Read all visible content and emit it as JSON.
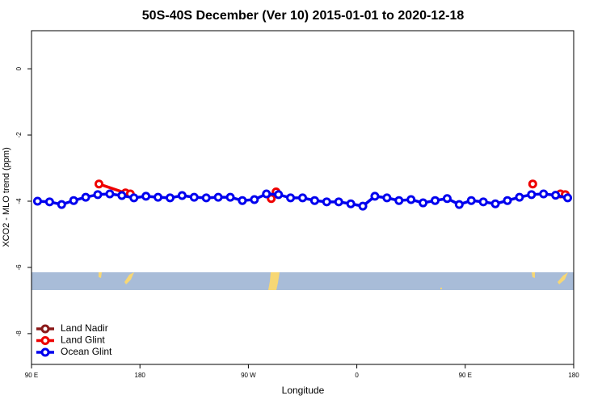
{
  "chart_data": {
    "type": "line",
    "title": "50S-40S December (Ver 10)   2015-01-01 to 2020-12-18",
    "x_label": "Longitude",
    "y_label": "XCO2 - MLO trend (ppm)",
    "xlim": [
      90,
      540
    ],
    "xticks": [
      {
        "value": 90,
        "label": "90 E"
      },
      {
        "value": 180,
        "label": "180"
      },
      {
        "value": 270,
        "label": "90 W"
      },
      {
        "value": 360,
        "label": "0"
      },
      {
        "value": 450,
        "label": "90 E"
      },
      {
        "value": 540,
        "label": "180"
      }
    ],
    "ylim": [
      -8.93,
      1.15
    ],
    "yticks": [
      0,
      -2,
      -4,
      -6,
      -8
    ],
    "legend": "bottom-left",
    "series": [
      {
        "name": "Land Nadir",
        "color": "#8b1a1a",
        "x": [],
        "values": []
      },
      {
        "name": "Land Glint",
        "color": "#ee0000",
        "x": [
          146,
          168,
          172,
          null,
          289,
          293,
          null,
          506,
          null,
          529,
          533
        ],
        "values": [
          -3.48,
          -3.75,
          -3.78,
          null,
          -3.92,
          -3.72,
          null,
          -3.48,
          null,
          -3.78,
          -3.8
        ]
      },
      {
        "name": "Ocean Glint",
        "color": "#0000ee",
        "x": [
          95,
          105,
          115,
          125,
          135,
          145,
          155,
          165,
          175,
          185,
          195,
          205,
          215,
          225,
          235,
          245,
          255,
          265,
          275,
          285,
          295,
          305,
          315,
          325,
          335,
          345,
          355,
          365,
          375,
          385,
          395,
          405,
          415,
          425,
          435,
          445,
          455,
          465,
          475,
          485,
          495,
          505,
          515,
          525,
          535
        ],
        "values": [
          -4.0,
          -4.02,
          -4.1,
          -3.98,
          -3.88,
          -3.8,
          -3.78,
          -3.83,
          -3.9,
          -3.85,
          -3.88,
          -3.9,
          -3.83,
          -3.88,
          -3.9,
          -3.88,
          -3.88,
          -3.98,
          -3.95,
          -3.78,
          -3.8,
          -3.9,
          -3.9,
          -3.98,
          -4.02,
          -4.02,
          -4.08,
          -4.15,
          -3.85,
          -3.9,
          -3.98,
          -3.95,
          -4.05,
          -3.98,
          -3.92,
          -4.1,
          -3.98,
          -4.02,
          -4.08,
          -3.98,
          -3.88,
          -3.8,
          -3.78,
          -3.82,
          -3.9
        ]
      }
    ]
  }
}
